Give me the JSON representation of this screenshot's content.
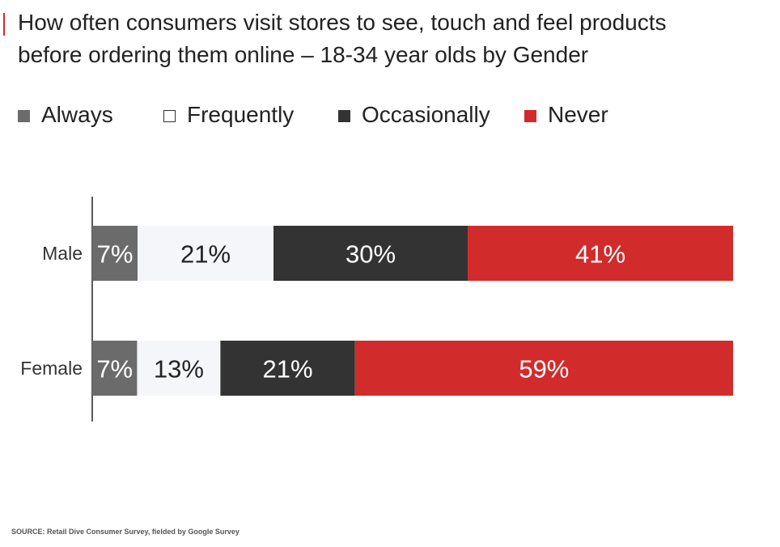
{
  "chart_data": {
    "type": "bar",
    "orientation": "horizontal",
    "stacked": true,
    "title": "How often consumers visit stores to see, touch and feel products before ordering them online – 18-34 year olds by Gender",
    "title_lines": [
      "How often consumers visit stores to see, touch and feel products",
      "before ordering them online – 18-34 year olds by Gender"
    ],
    "categories": [
      "Male",
      "Female"
    ],
    "series": [
      {
        "name": "Always",
        "values": [
          7,
          7
        ],
        "labels": [
          "7%",
          "7%"
        ],
        "color": "#6b6b6b",
        "label_color": "#ffffff"
      },
      {
        "name": "Frequently",
        "values": [
          21,
          13
        ],
        "labels": [
          "21%",
          "13%"
        ],
        "color": "#f5f6fa",
        "label_color": "#222222"
      },
      {
        "name": "Occasionally",
        "values": [
          30,
          21
        ],
        "labels": [
          "30%",
          "21%"
        ],
        "color": "#333333",
        "label_color": "#ffffff"
      },
      {
        "name": "Never",
        "values": [
          41,
          59
        ],
        "labels": [
          "41%",
          "59%"
        ],
        "color": "#d22b2b",
        "label_color": "#ffffff"
      }
    ],
    "xlim": [
      0,
      100
    ],
    "grid": false,
    "legend_position": "top-left",
    "source": "SOURCE: Retail Dive Consumer Survey, fielded by Google Survey"
  },
  "colors": {
    "accent": "#d32a2a",
    "legend_frequently_border": "#333333"
  }
}
